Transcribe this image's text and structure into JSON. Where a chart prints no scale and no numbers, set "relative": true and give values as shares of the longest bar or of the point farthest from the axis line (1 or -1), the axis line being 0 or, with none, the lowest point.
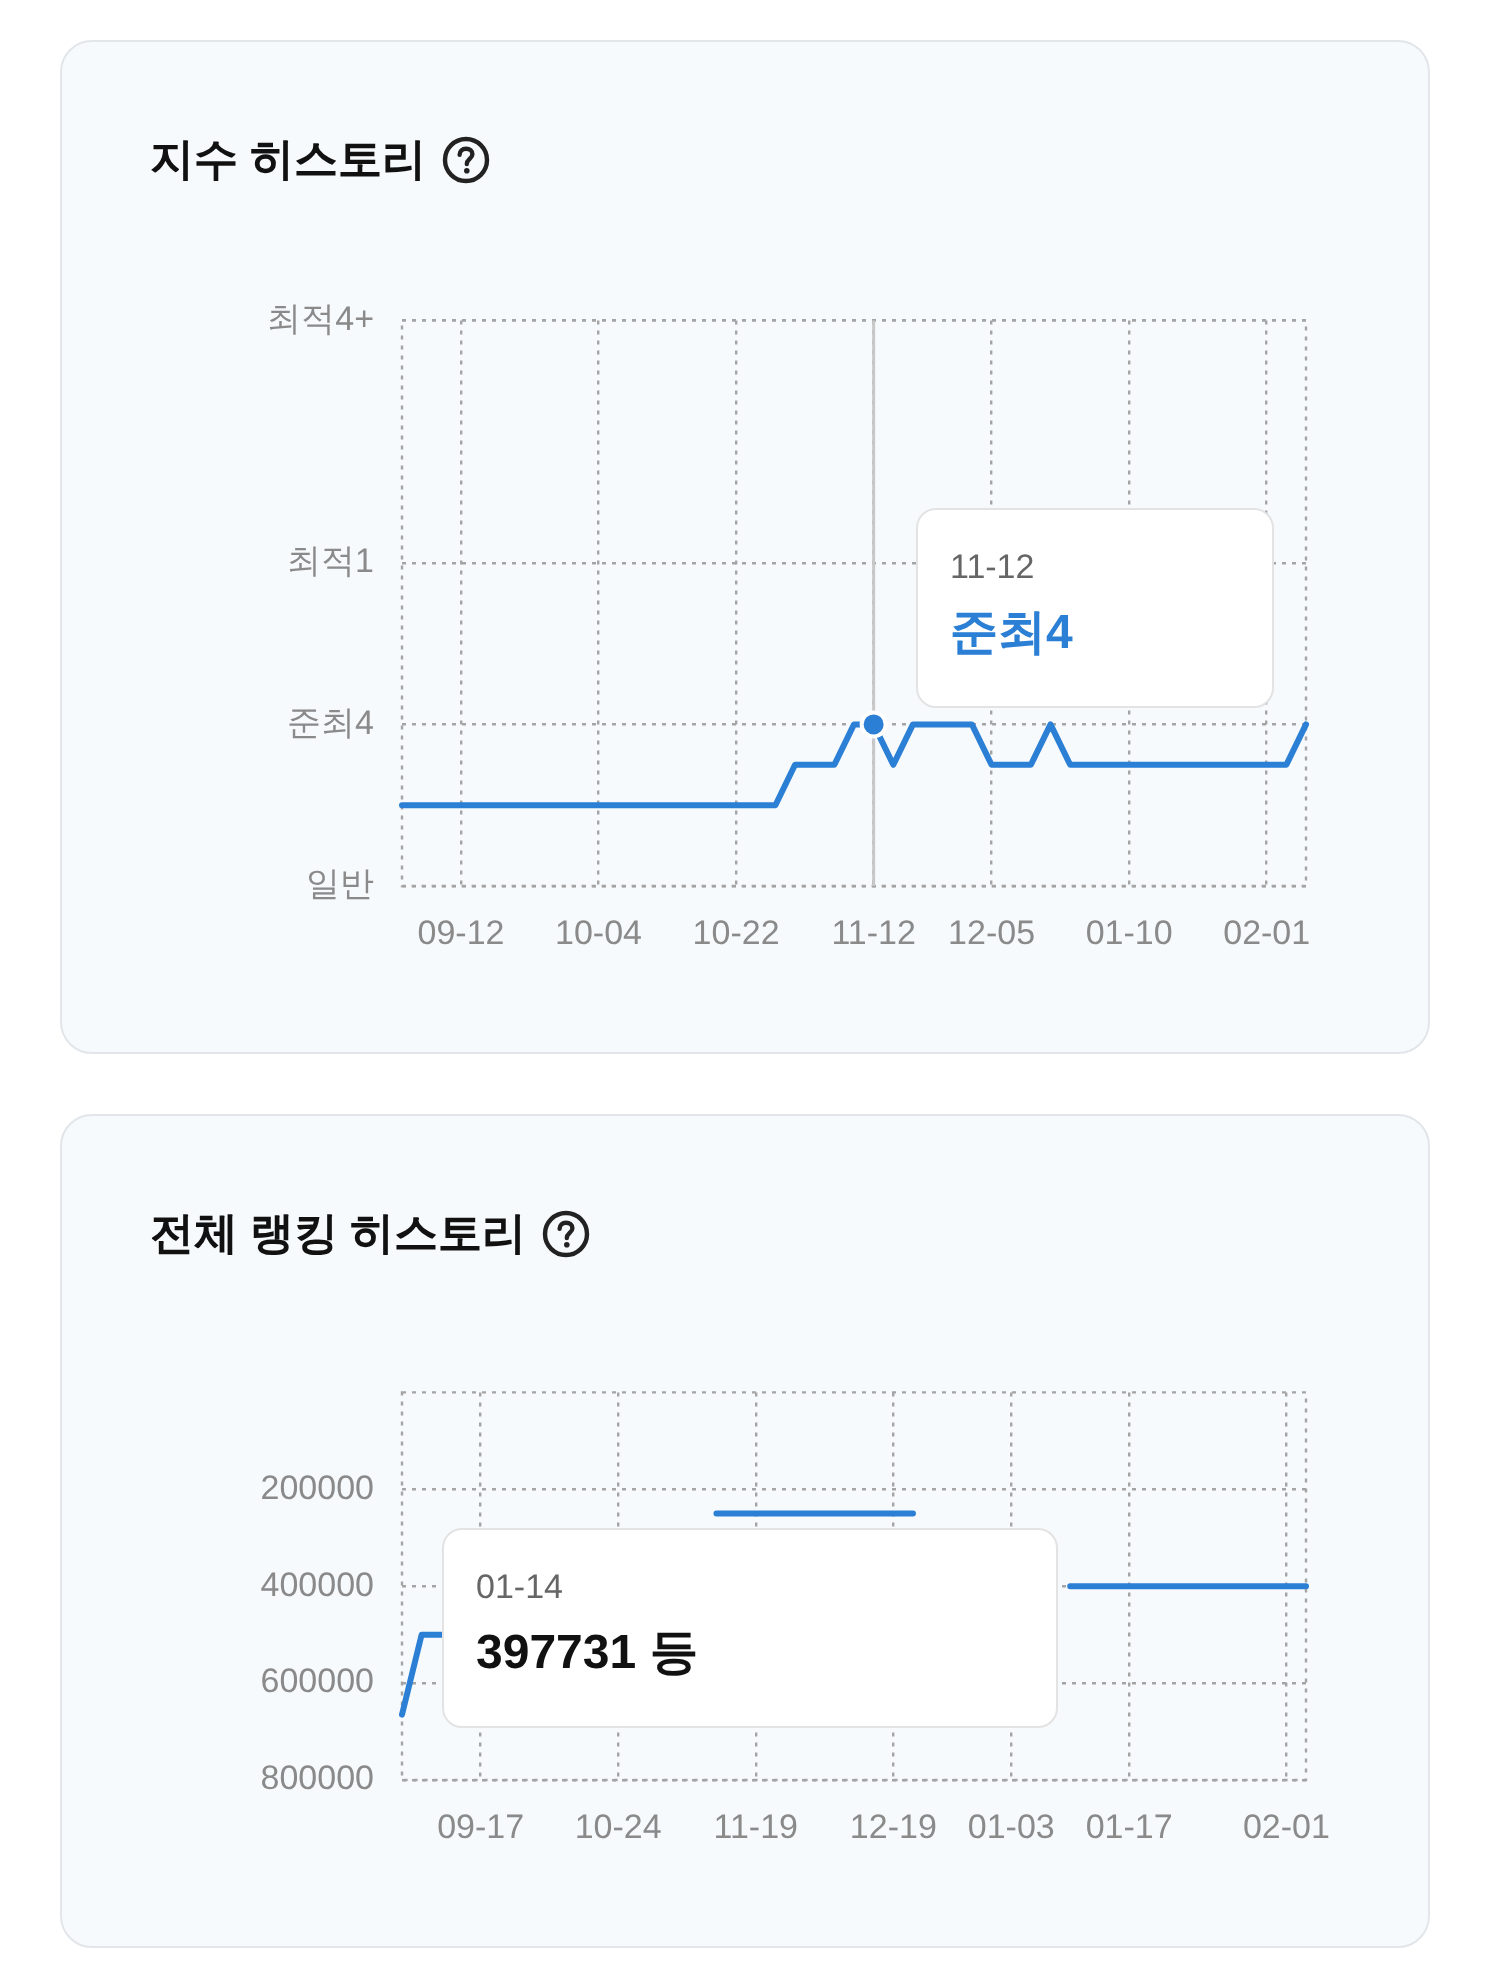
{
  "chart_data": [
    {
      "type": "line",
      "title": "지수 히스토리",
      "categories": [
        null,
        null,
        null,
        "09-12",
        null,
        null,
        null,
        null,
        null,
        null,
        "10-04",
        null,
        null,
        null,
        null,
        null,
        null,
        "10-22",
        null,
        null,
        null,
        null,
        null,
        null,
        "11-12",
        null,
        null,
        null,
        null,
        null,
        "12-05",
        null,
        null,
        null,
        null,
        null,
        null,
        "01-10",
        null,
        null,
        null,
        null,
        null,
        null,
        "02-01",
        null,
        null
      ],
      "series": [
        {
          "color": "#2b7fd4",
          "values": [
            0.5,
            0.5,
            0.5,
            0.5,
            0.5,
            0.5,
            0.5,
            0.5,
            0.5,
            0.5,
            0.5,
            0.5,
            0.5,
            0.5,
            0.5,
            0.5,
            0.5,
            0.5,
            0.5,
            0.5,
            0.75,
            0.75,
            0.75,
            1,
            1,
            0.75,
            1,
            1,
            1,
            1,
            0.75,
            0.75,
            0.75,
            1,
            0.75,
            0.75,
            0.75,
            0.75,
            0.75,
            0.75,
            0.75,
            0.75,
            0.75,
            0.75,
            0.75,
            0.75,
            1
          ]
        }
      ],
      "relative": true,
      "y_categories": [
        "최적4+",
        null,
        null,
        null,
        null,
        null,
        "최적1",
        null,
        null,
        null,
        "준최4",
        null,
        null,
        null,
        "일반"
      ],
      "grid": true,
      "ref_lines": [
        {
          "axis": "x",
          "value": "11-12",
          "color": "#c8c8c8"
        }
      ],
      "annotations": [
        "11-12",
        "준최4"
      ]
    },
    {
      "type": "line",
      "title": "전체 랭킹 히스토리",
      "categories": [
        null,
        null,
        null,
        null,
        "09-17",
        null,
        null,
        null,
        null,
        null,
        null,
        "10-24",
        null,
        null,
        null,
        null,
        null,
        null,
        "11-19",
        null,
        null,
        null,
        null,
        null,
        null,
        "12-19",
        null,
        null,
        null,
        null,
        null,
        "01-03",
        null,
        null,
        null,
        null,
        null,
        "01-17",
        null,
        null,
        null,
        null,
        null,
        null,
        null,
        "02-01",
        null
      ],
      "series": [
        {
          "color": "#2b7fd4",
          "values": [
            665000,
            500000,
            500000,
            null,
            null,
            null,
            null,
            null,
            null,
            null,
            null,
            null,
            null,
            null,
            null,
            null,
            250000,
            250000,
            250000,
            250000,
            250000,
            250000,
            250000,
            250000,
            250000,
            250000,
            250000,
            null,
            null,
            null,
            null,
            null,
            null,
            null,
            400000,
            400000,
            400000,
            400000,
            400000,
            400000,
            400000,
            400000,
            400000,
            400000,
            400000,
            400000,
            400000
          ]
        }
      ],
      "ylim": [
        800000,
        0
      ],
      "yticks": [
        200000,
        400000,
        600000,
        800000
      ],
      "grid": true,
      "annotations": [
        "01-14",
        "397731 등"
      ]
    }
  ]
}
